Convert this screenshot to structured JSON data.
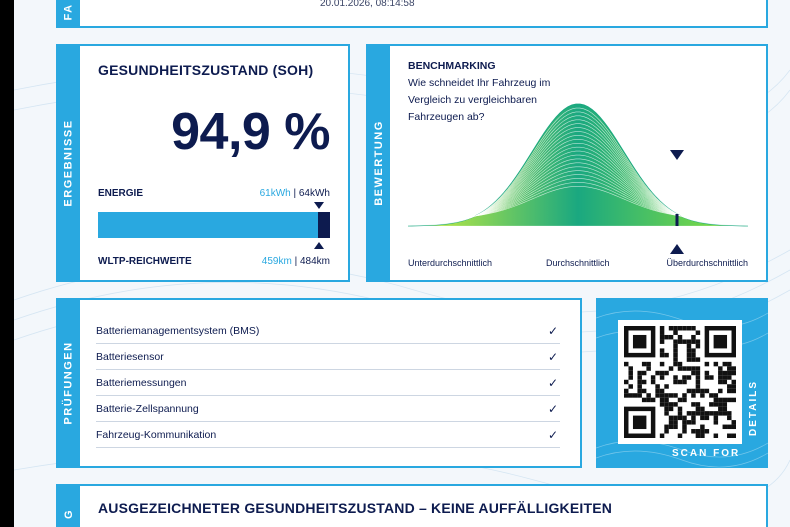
{
  "top": {
    "side_label": "FA",
    "timestamp": "20.01.2026, 08:14:58"
  },
  "results": {
    "side_label": "ERGEBNISSE",
    "title": "GESUNDHEITSZUSTAND (SOH)",
    "soh_value": "94,9 %",
    "energy": {
      "label": "ENERGIE",
      "current": "61kWh",
      "separator": "|",
      "nominal": "64kWh",
      "fill_fraction": 0.949
    },
    "range": {
      "label": "WLTP-REICHWEITE",
      "current": "459km",
      "separator": "|",
      "nominal": "484km"
    },
    "colors": {
      "bar": "#29a8e0",
      "bar_end": "#0d1b4f",
      "accent": "#29a8e0",
      "text": "#0d1b4f"
    }
  },
  "rating": {
    "side_label": "BEWERTUNG",
    "title": "BENCHMARKING",
    "question": "Wie schneidet Ihr Fahrzeug im Vergleich zu vergleichbaren Fahrzeugen ab?",
    "scale_labels": [
      "Unterdurchschnittlich",
      "Durchschnittlich",
      "Überdurchschnittlich"
    ],
    "marker_position": 0.75,
    "colors": {
      "curve_start": "#c9ef3a",
      "curve_end": "#1aa880",
      "marker": "#0d1b4f"
    }
  },
  "checks": {
    "side_label": "PRÜFUNGEN",
    "items": [
      {
        "label": "Batteriemanagementsystem (BMS)",
        "status": "✓"
      },
      {
        "label": "Batteriesensor",
        "status": "✓"
      },
      {
        "label": "Batteriemessungen",
        "status": "✓"
      },
      {
        "label": "Batterie-Zellspannung",
        "status": "✓"
      },
      {
        "label": "Fahrzeug-Kommunikation",
        "status": "✓"
      }
    ]
  },
  "qr": {
    "caption_bottom": "SCAN FOR",
    "caption_side": "DETAILS"
  },
  "summary": {
    "side_label": "G",
    "headline": "AUSGEZEICHNETER GESUNDHEITSZUSTAND – KEINE AUFFÄLLIGKEITEN"
  }
}
